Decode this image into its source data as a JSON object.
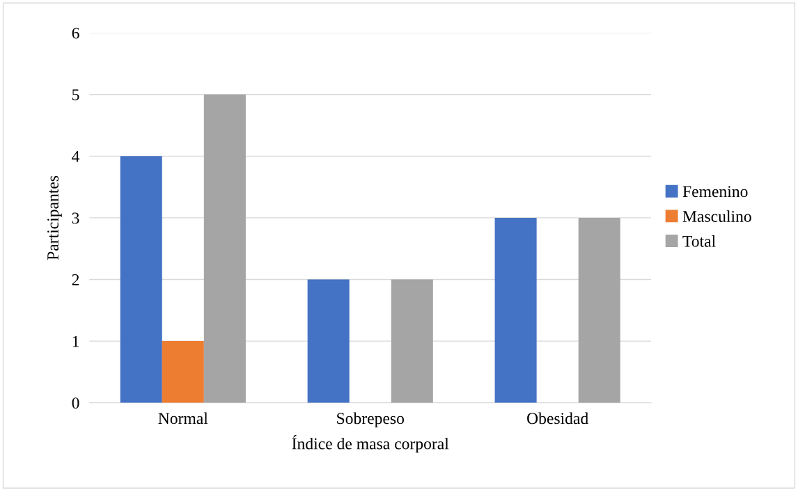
{
  "chart_data": {
    "type": "bar",
    "xlabel": "Índice de masa corporal",
    "ylabel": "Participantes",
    "categories": [
      "Normal",
      "Sobrepeso",
      "Obesidad"
    ],
    "series": [
      {
        "name": "Femenino",
        "color": "#4472c4",
        "values": [
          4,
          2,
          3
        ]
      },
      {
        "name": "Masculino",
        "color": "#ed7d31",
        "values": [
          1,
          0,
          0
        ]
      },
      {
        "name": "Total",
        "color": "#a5a5a5",
        "values": [
          5,
          2,
          3
        ]
      }
    ],
    "ylim": [
      0,
      6
    ],
    "yticks": [
      0,
      1,
      2,
      3,
      4,
      5,
      6
    ],
    "grid": "y",
    "legend": "right"
  }
}
